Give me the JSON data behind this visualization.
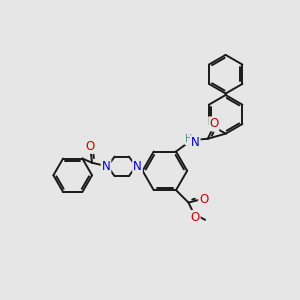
{
  "bg_color": "#e6e6e6",
  "bond_color": "#1a1a1a",
  "bond_width": 1.4,
  "atom_colors": {
    "N": "#0000cc",
    "O": "#cc0000",
    "H": "#4a9090",
    "C": "#1a1a1a"
  },
  "font_size": 8.5,
  "figsize": [
    3.0,
    3.0
  ],
  "dpi": 100
}
